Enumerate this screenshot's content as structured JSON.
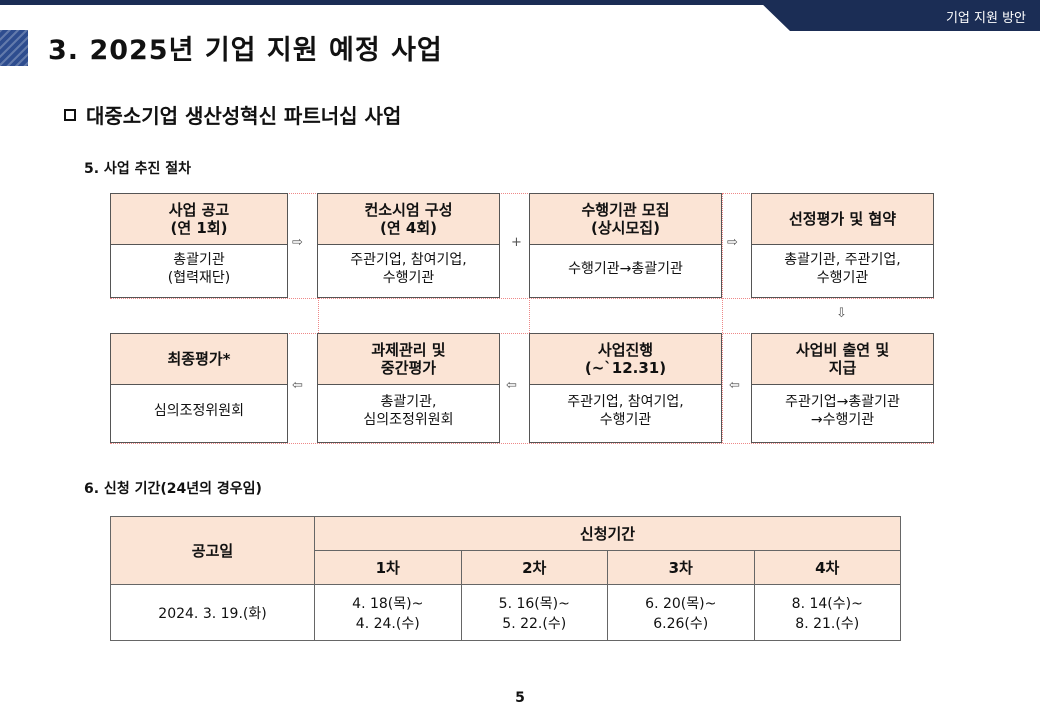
{
  "header": {
    "tab_label": "기업 지원 방안"
  },
  "page_title": "3. 2025년 기업 지원 예정 사업",
  "section_heading": "대중소기업 생산성혁신 파트너십 사업",
  "procedure": {
    "heading": "5. 사업 추진 절차",
    "steps": [
      {
        "title": [
          "사업 공고",
          "(연 1회)"
        ],
        "body": [
          "총괄기관",
          "(협력재단)"
        ]
      },
      {
        "title": [
          "컨소시엄 구성",
          "(연 4회)"
        ],
        "body": [
          "주관기업, 참여기업,",
          "수행기관"
        ]
      },
      {
        "title": [
          "수행기관 모집",
          "(상시모집)"
        ],
        "body": [
          "수행기관→총괄기관"
        ]
      },
      {
        "title": [
          "선정평가 및 협약"
        ],
        "body": [
          "총괄기관, 주관기업,",
          "수행기관"
        ]
      },
      {
        "title": [
          "최종평가*"
        ],
        "body": [
          "심의조정위원회"
        ]
      },
      {
        "title": [
          "과제관리 및",
          "중간평가"
        ],
        "body": [
          "총괄기관,",
          "심의조정위원회"
        ]
      },
      {
        "title": [
          "사업진행",
          "(~`12.31)"
        ],
        "body": [
          "주관기업, 참여기업,",
          "수행기관"
        ]
      },
      {
        "title": [
          "사업비 출연 및",
          "지급"
        ],
        "body": [
          "주관기업→총괄기관",
          "→수행기관"
        ]
      }
    ],
    "arrows": {
      "right": "⇨",
      "left": "⇦",
      "down": "⇩",
      "plus": "+"
    }
  },
  "period": {
    "heading": "6. 신청 기간(24년의 경우임)",
    "table": {
      "col_announce": "공고일",
      "col_period": "신청기간",
      "rounds": [
        "1차",
        "2차",
        "3차",
        "4차"
      ],
      "announce_date": "2024. 3. 19.(화)",
      "periods": [
        [
          "4. 18(목)~",
          "4. 24.(수)"
        ],
        [
          "5. 16(목)~",
          "5. 22.(수)"
        ],
        [
          "6. 20(목)~",
          "6.26(수)"
        ],
        [
          "8. 14(수)~",
          "8. 21.(수)"
        ]
      ]
    }
  },
  "page_number": "5"
}
